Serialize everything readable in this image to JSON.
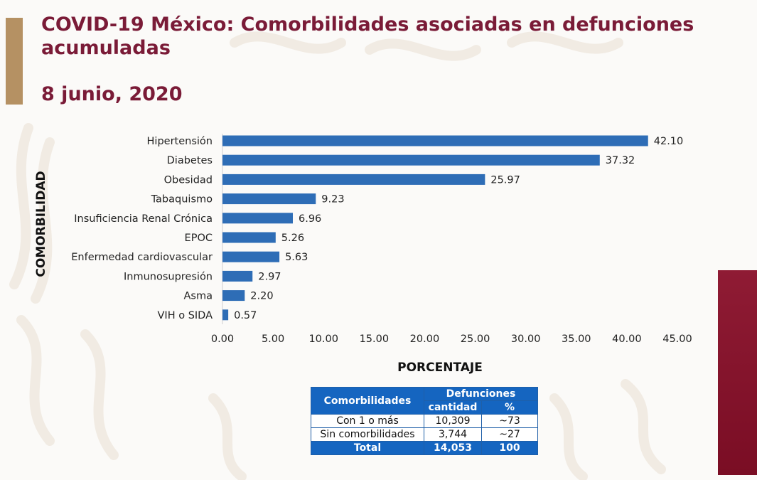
{
  "header": {
    "title": "COVID-19 México: Comorbilidades asociadas en defunciones acumuladas",
    "date": "8 junio, 2020"
  },
  "colors": {
    "bar": "#2e6db6",
    "title": "#7a1b37",
    "gold": "#b59163",
    "maroon": "#82122b",
    "table_header": "#1565c0"
  },
  "chart_data": {
    "type": "bar",
    "orientation": "horizontal",
    "categories": [
      "Hipertensión",
      "Diabetes",
      "Obesidad",
      "Tabaquismo",
      "Insuficiencia Renal Crónica",
      "EPOC",
      "Enfermedad cardiovascular",
      "Inmunosupresión",
      "Asma",
      "VIH o SIDA"
    ],
    "values": [
      42.1,
      37.32,
      25.97,
      9.23,
      6.96,
      5.26,
      5.63,
      2.97,
      2.2,
      0.57
    ],
    "value_labels": [
      "42.10",
      "37.32",
      "25.97",
      "9.23",
      "6.96",
      "5.26",
      "5.63",
      "2.97",
      "2.20",
      "0.57"
    ],
    "xlim": [
      0,
      45
    ],
    "xticks": [
      "0.00",
      "5.00",
      "10.00",
      "15.00",
      "20.00",
      "25.00",
      "30.00",
      "35.00",
      "40.00",
      "45.00"
    ],
    "xlabel": "PORCENTAJE",
    "ylabel": "COMORBILIDAD",
    "grid": false
  },
  "table": {
    "col1_header": "Comorbilidades",
    "group_header": "Defunciones",
    "sub_headers": [
      "cantidad",
      "%"
    ],
    "rows": [
      [
        "Con 1 o más",
        "10,309",
        "~73"
      ],
      [
        "Sin comorbilidades",
        "3,744",
        "~27"
      ]
    ],
    "total": [
      "Total",
      "14,053",
      "100"
    ]
  }
}
